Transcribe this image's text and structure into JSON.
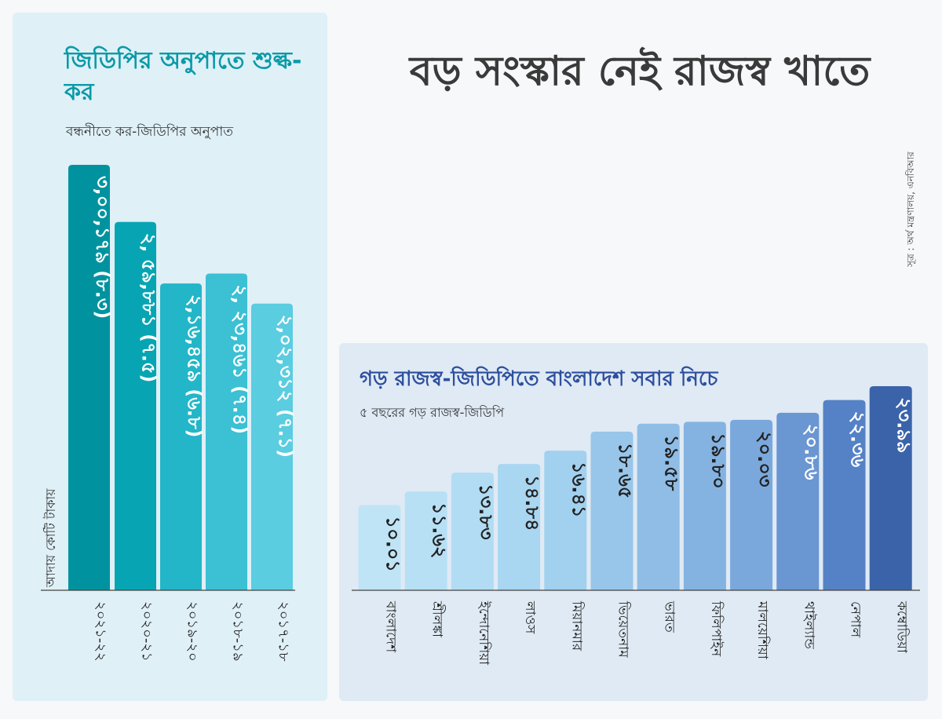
{
  "title": "বড় সংস্কার নেই রাজস্ব খাতে",
  "source": "সূত্র : অর্থ মন্ত্রণালয়, এনবিআর",
  "chart_data": [
    {
      "type": "bar",
      "title": "জিডিপির অনুপাতে শুল্ক-কর",
      "subtitle": "বন্ধনীতে কর-জিডিপির অনুপাত",
      "ylabel": "আদায় কোটি টাকায়",
      "categories": [
        "২০২১-২২",
        "২০২০-২১",
        "২০১৯-২০",
        "২০১৮-১৯",
        "২০১৭-১৮"
      ],
      "labels": [
        "৩,০০,১৭৯ (৮.৩)",
        "২, ৫৯,৮৮১ (৭.৫)",
        "২,১৬,৪৫৯ (৬.৮)",
        "২, ২৩,৪৬১ (৭.৪)",
        "২,০২,৩১২ (৭.১)"
      ],
      "values": [
        300179,
        259881,
        216459,
        223461,
        202312
      ],
      "ratio": [
        8.3,
        7.5,
        6.8,
        7.4,
        7.1
      ],
      "ylim": [
        0,
        320000
      ],
      "colors": [
        "#00939f",
        "#07a5b3",
        "#22b6c8",
        "#3bc0d4",
        "#5bcde0"
      ]
    },
    {
      "type": "bar",
      "title": "গড় রাজস্ব-জিডিপিতে বাংলাদেশ সবার নিচে",
      "subtitle": "৫ বছরের গড় রাজস্ব-জিডিপি",
      "categories": [
        "বাংলাদেশ",
        "শ্রীলঙ্কা",
        "ইন্দোনেশিয়া",
        "লাওস",
        "মিয়ানমার",
        "ভিয়েতনাম",
        "ভারত",
        "ফিলিপাইন",
        "মালয়েশিয়া",
        "থাইল্যান্ড",
        "নেপাল",
        "কম্বোডিয়া"
      ],
      "labels": [
        "১০.০১",
        "১১.৬২",
        "১৩.৮৩",
        "১৪.৮৪",
        "১৬.৪১",
        "১৮.৬৫",
        "১৯.৫৮",
        "১৯.৮০",
        "২০.০৩",
        "২০.৮৬",
        "২২.৩৬",
        "২৩.৯৯"
      ],
      "values": [
        10.01,
        11.62,
        13.83,
        14.84,
        16.41,
        18.65,
        19.58,
        19.8,
        20.03,
        20.86,
        22.36,
        23.99
      ],
      "ylim": [
        0,
        25
      ],
      "colors": [
        "#bfe4f6",
        "#b8e0f5",
        "#b1dcf3",
        "#a9d6f1",
        "#a2d0ef",
        "#98c6ea",
        "#8fbde6",
        "#85b3e1",
        "#7ba8dc",
        "#6a96d2",
        "#5582c6",
        "#3a63aa"
      ],
      "text_colors": [
        "#222222",
        "#222222",
        "#222222",
        "#222222",
        "#222222",
        "#222222",
        "#222222",
        "#222222",
        "#222222",
        "#ffffff",
        "#ffffff",
        "#ffffff"
      ]
    }
  ]
}
